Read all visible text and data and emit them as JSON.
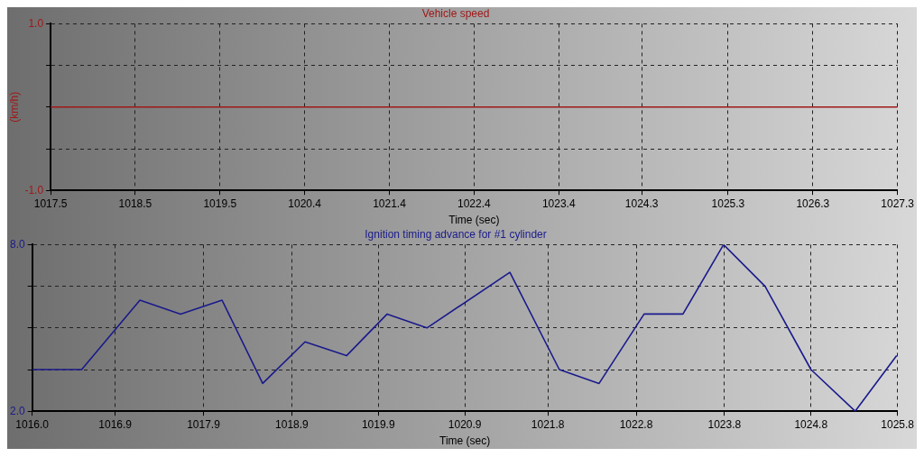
{
  "chart_data": [
    {
      "type": "line",
      "title": "Vehicle speed",
      "xlabel": "Time (sec)",
      "ylabel": "(km/h)",
      "x": [
        1017.5,
        1027.3
      ],
      "series": [
        {
          "color": "#a01818",
          "values": [
            0,
            0
          ]
        }
      ],
      "xlim": [
        1017.5,
        1027.3
      ],
      "xticks": [
        {
          "value": 1017.5,
          "label": "1017.5"
        },
        {
          "value": 1018.48,
          "label": "1018.5"
        },
        {
          "value": 1019.46,
          "label": "1019.5"
        },
        {
          "value": 1020.44,
          "label": "1020.4"
        },
        {
          "value": 1021.42,
          "label": "1021.4"
        },
        {
          "value": 1022.4,
          "label": "1022.4"
        },
        {
          "value": 1023.38,
          "label": "1023.4"
        },
        {
          "value": 1024.34,
          "label": "1024.3"
        },
        {
          "value": 1025.34,
          "label": "1025.3"
        },
        {
          "value": 1026.32,
          "label": "1026.3"
        },
        {
          "value": 1027.3,
          "label": "1027.3"
        }
      ],
      "ylim": [
        -1,
        1
      ],
      "yticks": [
        {
          "value": -1,
          "label": "-1.0"
        },
        {
          "value": -0.5,
          "label": null
        },
        {
          "value": 0,
          "label": null
        },
        {
          "value": 0.5,
          "label": null
        },
        {
          "value": 1,
          "label": "1.0"
        }
      ],
      "grid": true,
      "legend": false,
      "marker": "none",
      "line_style": "solid"
    },
    {
      "type": "line",
      "title": "Ignition timing advance for #1 cylinder",
      "xlabel": "Time (sec)",
      "x": [
        1016.0,
        1016.56,
        1017.22,
        1017.68,
        1018.15,
        1018.61,
        1019.09,
        1019.56,
        1020.02,
        1020.47,
        1021.41,
        1021.97,
        1022.42,
        1022.93,
        1023.37,
        1023.83,
        1024.3,
        1024.82,
        1025.32,
        1025.79
      ],
      "series": [
        {
          "color": "#1a1a8c",
          "values": [
            3.5,
            3.5,
            6.0,
            5.5,
            6.0,
            3.0,
            4.5,
            4.0,
            5.5,
            5.0,
            7.0,
            3.5,
            3.0,
            5.5,
            5.5,
            8.0,
            6.5,
            3.5,
            2.0,
            4.0
          ]
        }
      ],
      "xlim": [
        1016.0,
        1025.8
      ],
      "xticks": [
        {
          "value": 1016.0,
          "label": "1016.0"
        },
        {
          "value": 1016.94,
          "label": "1016.9"
        },
        {
          "value": 1017.94,
          "label": "1017.9"
        },
        {
          "value": 1018.94,
          "label": "1018.9"
        },
        {
          "value": 1019.92,
          "label": "1019.9"
        },
        {
          "value": 1020.9,
          "label": "1020.9"
        },
        {
          "value": 1021.84,
          "label": "1021.8"
        },
        {
          "value": 1022.84,
          "label": "1022.8"
        },
        {
          "value": 1023.84,
          "label": "1023.8"
        },
        {
          "value": 1024.82,
          "label": "1024.8"
        },
        {
          "value": 1025.8,
          "label": "1025.8"
        }
      ],
      "ylim": [
        2,
        8
      ],
      "yticks": [
        {
          "value": 2,
          "label": "2.0"
        },
        {
          "value": 3.5,
          "label": null
        },
        {
          "value": 5,
          "label": null
        },
        {
          "value": 6.5,
          "label": null
        },
        {
          "value": 8,
          "label": "8.0"
        }
      ],
      "grid": true,
      "legend": false,
      "marker": "none",
      "line_style": "solid"
    }
  ]
}
